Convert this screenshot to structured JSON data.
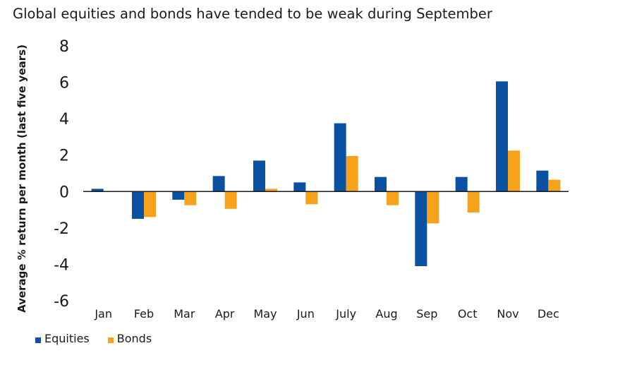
{
  "chart_data": {
    "type": "bar",
    "title": "Global equities and bonds have tended to be weak during September",
    "ylabel": "Average % return per month (last five years)",
    "xlabel": "",
    "categories": [
      "Jan",
      "Feb",
      "Mar",
      "Apr",
      "May",
      "Jun",
      "July",
      "Aug",
      "Sep",
      "Oct",
      "Nov",
      "Dec"
    ],
    "series": [
      {
        "name": "Equities",
        "color": "#0a51a1",
        "values": [
          0.15,
          -1.5,
          -0.45,
          0.85,
          1.7,
          0.5,
          3.75,
          0.8,
          -4.1,
          0.8,
          6.05,
          1.15
        ]
      },
      {
        "name": "Bonds",
        "color": "#f7a21b",
        "values": [
          0.0,
          -1.4,
          -0.75,
          -0.95,
          0.15,
          -0.7,
          1.95,
          -0.75,
          -1.75,
          -1.15,
          2.25,
          0.65
        ]
      }
    ],
    "ylim": [
      -6,
      8
    ],
    "yticks": [
      8,
      6,
      4,
      2,
      0,
      -2,
      -4,
      -6
    ],
    "grid": false,
    "legend_position": "bottom-left"
  }
}
